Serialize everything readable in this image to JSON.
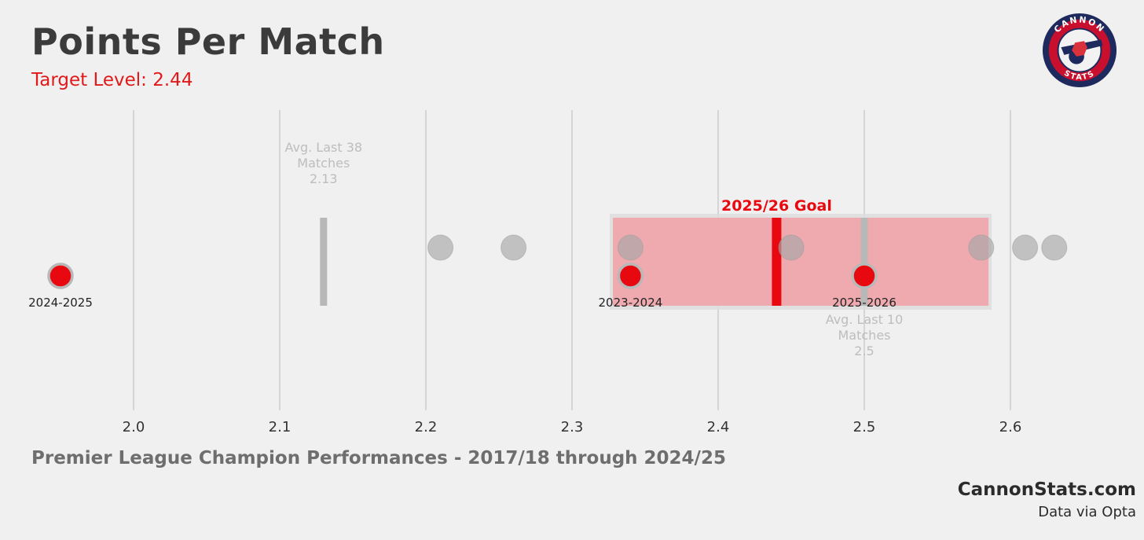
{
  "header": {
    "title": "Points Per Match",
    "subtitle": "Target Level: 2.44"
  },
  "footer": {
    "note": "Premier League Champion Performances - 2017/18 through 2024/25",
    "brand": "CannonStats.com",
    "source": "Data via Opta"
  },
  "logo": {
    "top_text": "CANNON",
    "bottom_text": "STATS",
    "icon": "cannon-icon"
  },
  "colors": {
    "background": "#f0f0f0",
    "accent_red": "#e8080f",
    "champion_grey": "#b8b8b8",
    "target_band": "#f0a4a8",
    "grid": "#cccccc"
  },
  "chart_data": {
    "type": "scatter",
    "xlim": [
      1.93,
      2.69
    ],
    "x_ticks": [
      2.0,
      2.1,
      2.2,
      2.3,
      2.4,
      2.5,
      2.6
    ],
    "x_tick_labels": [
      "2.0",
      "2.1",
      "2.2",
      "2.3",
      "2.4",
      "2.5",
      "2.6"
    ],
    "grid": true,
    "champion_points": [
      2.21,
      2.26,
      2.34,
      2.45,
      2.58,
      2.61,
      2.63
    ],
    "arsenal_seasons": [
      {
        "label": "2024-2025",
        "value": 1.95
      },
      {
        "label": "2023-2024",
        "value": 2.34
      },
      {
        "label": "2025-2026",
        "value": 2.5
      }
    ],
    "target_band": {
      "from": 2.328,
      "to": 2.585
    },
    "goal": {
      "label": "2025/26 Goal",
      "value": 2.44
    },
    "reference_lines": [
      {
        "label_lines": [
          "Avg. Last 38",
          "Matches",
          "2.13"
        ],
        "value": 2.13
      },
      {
        "label_lines": [
          "Avg. Last 10",
          "Matches",
          "2.5"
        ],
        "value": 2.5
      }
    ]
  }
}
